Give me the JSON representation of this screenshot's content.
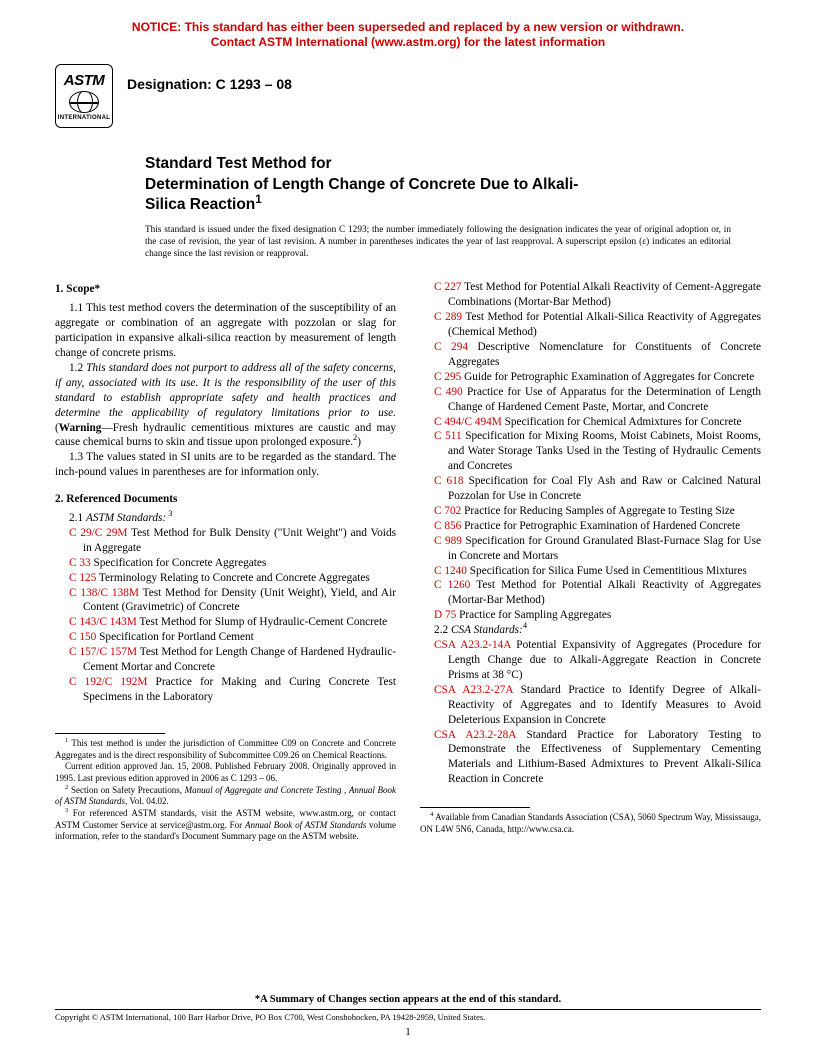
{
  "notice": {
    "line1": "NOTICE: This standard has either been superseded and replaced by a new version or withdrawn.",
    "line2": "Contact ASTM International (www.astm.org) for the latest information",
    "color": "#cc0000"
  },
  "logo": {
    "text_top": "ASTM",
    "text_bottom": "INTERNATIONAL"
  },
  "designation": "Designation: C 1293 – 08",
  "title_line1": "Standard Test Method for",
  "title_line2_a": "Determination of Length Change of Concrete Due to Alkali-",
  "title_line2_b": "Silica Reaction",
  "title_sup": "1",
  "issuance": "This standard is issued under the fixed designation C 1293; the number immediately following the designation indicates the year of original adoption or, in the case of revision, the year of last revision. A number in parentheses indicates the year of last reapproval. A superscript epsilon (ε) indicates an editorial change since the last revision or reapproval.",
  "scope": {
    "head": "1. Scope*",
    "p1": "1.1 This test method covers the determination of the susceptibility of an aggregate or combination of an aggregate with pozzolan or slag for participation in expansive alkali-silica reaction by measurement of length change of concrete prisms.",
    "p2_a": "1.2 ",
    "p2_italic": "This standard does not purport to address all of the safety concerns, if any, associated with its use. It is the responsibility of the user of this standard to establish appropriate safety and health practices and determine the applicability of regulatory limitations prior to use.",
    "p2_b": " (",
    "p2_warn": "Warning",
    "p2_c": "—Fresh hydraulic cementitious mixtures are caustic and may cause chemical burns to skin and tissue upon prolonged exposure.",
    "p2_sup": "2",
    "p2_d": ")",
    "p3": "1.3 The values stated in SI units are to be regarded as the standard. The inch-pound values in parentheses are for information only."
  },
  "refdocs": {
    "head": "2. Referenced Documents",
    "sub1_a": "2.1 ",
    "sub1_b": "ASTM Standards:",
    "sub1_sup": " 3",
    "sub2_a": "2.2 ",
    "sub2_b": "CSA Standards:",
    "sub2_sup": "4"
  },
  "refs_left": [
    {
      "code": "C 29/C 29M",
      "text": " Test Method for Bulk Density (\"Unit Weight\") and Voids in Aggregate"
    },
    {
      "code": "C 33",
      "text": " Specification for Concrete Aggregates"
    },
    {
      "code": "C 125",
      "text": " Terminology Relating to Concrete and Concrete Aggregates"
    },
    {
      "code": "C 138/C 138M",
      "text": " Test Method for Density (Unit Weight), Yield, and Air Content (Gravimetric) of Concrete"
    },
    {
      "code": "C 143/C 143M",
      "text": " Test Method for Slump of Hydraulic-Cement Concrete"
    },
    {
      "code": "C 150",
      "text": " Specification for Portland Cement"
    },
    {
      "code": "C 157/C 157M",
      "text": " Test Method for Length Change of Hardened Hydraulic-Cement Mortar and Concrete"
    },
    {
      "code": "C 192/C 192M",
      "text": " Practice for Making and Curing Concrete Test Specimens in the Laboratory"
    }
  ],
  "refs_right": [
    {
      "code": "C 227",
      "text": " Test Method for Potential Alkali Reactivity of Cement-Aggregate Combinations (Mortar-Bar Method)"
    },
    {
      "code": "C 289",
      "text": " Test Method for Potential Alkali-Silica Reactivity of Aggregates (Chemical Method)"
    },
    {
      "code": "C 294",
      "text": " Descriptive Nomenclature for Constituents of Concrete Aggregates"
    },
    {
      "code": "C 295",
      "text": " Guide for Petrographic Examination of Aggregates for Concrete"
    },
    {
      "code": "C 490",
      "text": " Practice for Use of Apparatus for the Determination of Length Change of Hardened Cement Paste, Mortar, and Concrete"
    },
    {
      "code": "C 494/C 494M",
      "text": " Specification for Chemical Admixtures for Concrete"
    },
    {
      "code": "C 511",
      "text": " Specification for Mixing Rooms, Moist Cabinets, Moist Rooms, and Water Storage Tanks Used in the Testing of Hydraulic Cements and Concretes"
    },
    {
      "code": "C 618",
      "text": " Specification for Coal Fly Ash and Raw or Calcined Natural Pozzolan for Use in Concrete"
    },
    {
      "code": "C 702",
      "text": " Practice for Reducing Samples of Aggregate to Testing Size"
    },
    {
      "code": "C 856",
      "text": " Practice for Petrographic Examination of Hardened Concrete"
    },
    {
      "code": "C 989",
      "text": " Specification for Ground Granulated Blast-Furnace Slag for Use in Concrete and Mortars"
    },
    {
      "code": "C 1240",
      "text": " Specification for Silica Fume Used in Cementitious Mixtures"
    },
    {
      "code": "C 1260",
      "text": " Test Method for Potential Alkali Reactivity of Aggregates (Mortar-Bar Method)"
    },
    {
      "code": "D 75",
      "text": " Practice for Sampling Aggregates"
    }
  ],
  "csa_refs": [
    {
      "code": "CSA A23.2-14A",
      "text": " Potential Expansivity of Aggregates (Procedure for Length Change due to Alkali-Aggregate Reaction in Concrete Prisms at 38 °C)"
    },
    {
      "code": "CSA A23.2-27A",
      "text": " Standard Practice to Identify Degree of Alkali-Reactivity of Aggregates and to Identify Measures to Avoid Deleterious Expansion in Concrete"
    },
    {
      "code": "CSA A23.2-28A",
      "text": " Standard Practice for Laboratory Testing to Demonstrate the Effectiveness of Supplementary Cementing Materials and Lithium-Based Admixtures to Prevent Alkali-Silica Reaction in Concrete"
    }
  ],
  "footnotes_left": {
    "f1_sup": "1",
    "f1": " This test method is under the jurisdiction of Committee C09 on Concrete and Concrete Aggregates and is the direct responsibility of Subcommittee C09.26 on Chemical Reactions.",
    "f1b": "Current edition approved Jan. 15, 2008. Published February 2008. Originally approved in 1995. Last previous edition approved in 2006 as C 1293 – 06.",
    "f2_sup": "2",
    "f2a": " Section on Safety Precautions, ",
    "f2b": "Manual of Aggregate and Concrete Testing",
    "f2c": " , ",
    "f2d": "Annual Book of ASTM Standards",
    "f2e": ", Vol. 04.02.",
    "f3_sup": "3",
    "f3a": " For referenced ASTM standards, visit the ASTM website, www.astm.org, or contact ASTM Customer Service at service@astm.org. For ",
    "f3b": "Annual Book of ASTM Standards",
    "f3c": " volume information, refer to the standard's Document Summary page on the ASTM website."
  },
  "footnotes_right": {
    "f4_sup": "4",
    "f4": " Available from Canadian Standards Association (CSA), 5060 Spectrum Way, Mississauga, ON L4W 5N6, Canada, http://www.csa.ca."
  },
  "summary_note": "*A Summary of Changes section appears at the end of this standard.",
  "copyright": "Copyright © ASTM International, 100 Barr Harbor Drive, PO Box C700, West Conshohocken, PA 19428-2959, United States.",
  "page_num": "1",
  "colors": {
    "ref": "#cc0000",
    "text": "#000000"
  }
}
